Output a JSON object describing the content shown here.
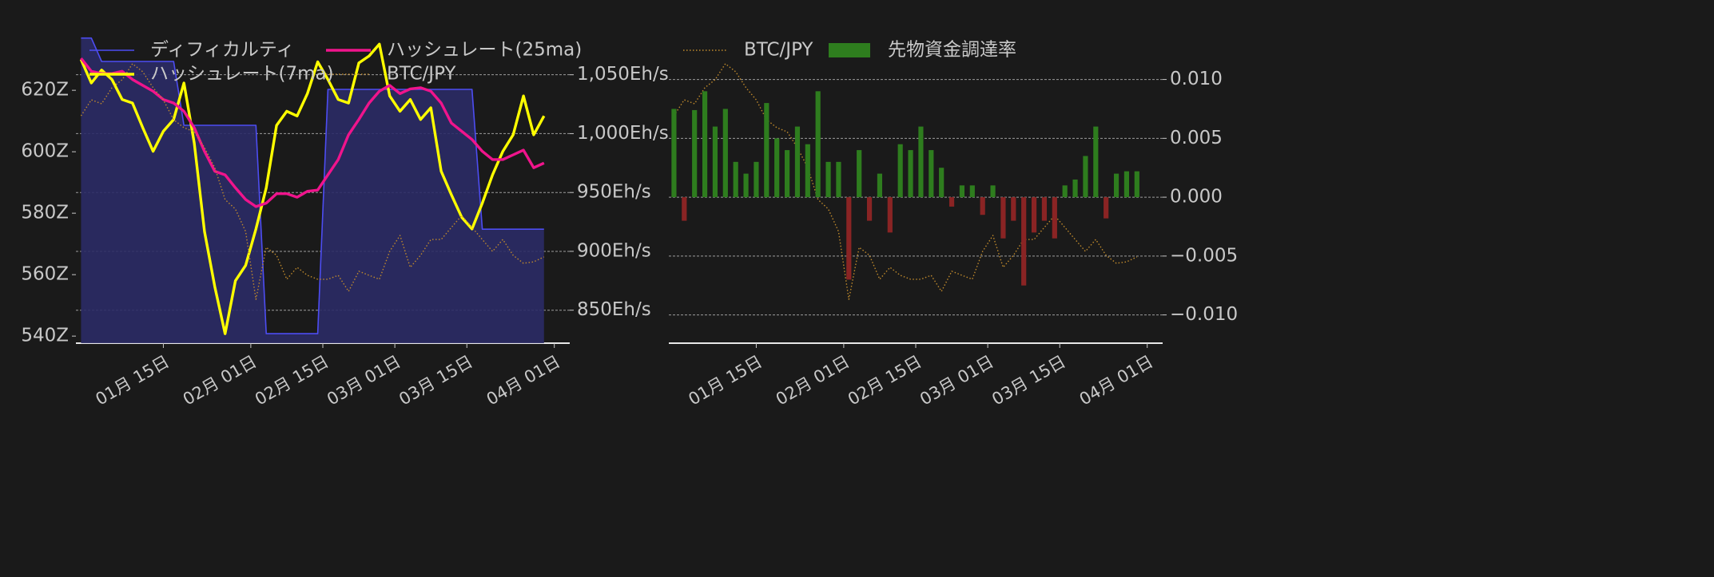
{
  "chart_data": [
    {
      "type": "line",
      "x": [
        -2,
        0,
        2,
        4,
        6,
        8,
        10,
        12,
        14,
        16,
        18,
        20,
        22,
        24,
        26,
        28,
        30,
        32,
        34,
        36,
        38,
        40,
        42,
        44,
        46,
        48,
        50,
        52,
        54,
        56,
        58,
        60,
        62,
        64,
        66,
        68,
        70,
        72,
        74,
        76,
        78,
        80,
        82,
        84,
        86,
        88
      ],
      "xlim": [
        -3,
        93
      ],
      "xticks": [
        {
          "value": 14,
          "label": "01月 15日"
        },
        {
          "value": 31,
          "label": "02月 01日"
        },
        {
          "value": 45,
          "label": "02月 15日"
        },
        {
          "value": 59,
          "label": "03月 01日"
        },
        {
          "value": 73,
          "label": "03月 15日"
        },
        {
          "value": 90,
          "label": "04月 01日"
        }
      ],
      "ylim": [
        537.7,
        637.7
      ],
      "yticks": [
        {
          "value": 540,
          "label": "540Z"
        },
        {
          "value": 560,
          "label": "560Z"
        },
        {
          "value": 580,
          "label": "580Z"
        },
        {
          "value": 600,
          "label": "600Z"
        },
        {
          "value": 620,
          "label": "620Z"
        }
      ],
      "y2lim": [
        822,
        1083
      ],
      "y2ticks": [
        {
          "value": 850,
          "label": "850Eh/s"
        },
        {
          "value": 900,
          "label": "900Eh/s"
        },
        {
          "value": 950,
          "label": "950Eh/s"
        },
        {
          "value": 1000,
          "label": "1,000Eh/s"
        },
        {
          "value": 1050,
          "label": "1,050Eh/s"
        }
      ],
      "y3lim": [
        3500000,
        5000000
      ],
      "grid": true,
      "legend": "upper left",
      "legend_ncol": 2,
      "series": [
        {
          "name": "ディフィカルティ",
          "type": "area",
          "color": "#4d4df2",
          "fill": "#2b2b66",
          "values": [
            637,
            637,
            629.4,
            629.4,
            629.4,
            629.4,
            629.4,
            629.4,
            629.4,
            629.4,
            608.6,
            608.6,
            608.6,
            608.6,
            608.6,
            608.6,
            608.6,
            608.6,
            540.8,
            540.8,
            540.8,
            540.8,
            540.8,
            540.8,
            620.3,
            620.3,
            620.3,
            620.3,
            620.3,
            620.3,
            620.3,
            620.3,
            620.3,
            620.3,
            620.3,
            620.3,
            620.3,
            620.3,
            620.3,
            574.8,
            574.8,
            574.8,
            574.8,
            574.8,
            574.8,
            574.8
          ]
        },
        {
          "name": "ハッシュレート(7ma)",
          "color": "#ffff00",
          "axis": "y2",
          "values": [
            1063,
            1043,
            1054,
            1046,
            1029,
            1026,
            1005,
            985,
            1002,
            1012,
            1043,
            992,
            917,
            870,
            830,
            875,
            888,
            919,
            954,
            1007,
            1019,
            1015,
            1034,
            1061,
            1046,
            1029,
            1026,
            1060,
            1066,
            1076,
            1032,
            1019,
            1029,
            1012,
            1022,
            968,
            948,
            929,
            919,
            941,
            965,
            985,
            999,
            1032,
            999,
            1015
          ]
        },
        {
          "name": "ハッシュレート(25ma)",
          "color": "#f0148c",
          "axis": "y2",
          "values": [
            1064,
            1053,
            1051,
            1051,
            1053,
            1046,
            1041,
            1036,
            1029,
            1026,
            1019,
            1005,
            985,
            968,
            965,
            954,
            944,
            938,
            941,
            949,
            949,
            946,
            951,
            952,
            965,
            978,
            999,
            1012,
            1026,
            1036,
            1041,
            1034,
            1038,
            1039,
            1036,
            1026,
            1009,
            1002,
            995,
            985,
            978,
            978,
            982,
            986,
            971,
            975
          ]
        },
        {
          "name": "BTC/JPY",
          "color": "#c08a2c",
          "axis": "y3",
          "dash": "dotted",
          "values": [
            4610000,
            4688000,
            4669000,
            4747000,
            4786000,
            4864000,
            4825000,
            4747000,
            4688000,
            4591000,
            4552000,
            4532000,
            4455000,
            4357000,
            4201000,
            4155000,
            4045000,
            3714000,
            3968000,
            3929000,
            3812000,
            3870000,
            3831000,
            3812000,
            3812000,
            3831000,
            3753000,
            3851000,
            3831000,
            3812000,
            3948000,
            4026000,
            3870000,
            3929000,
            4006000,
            4006000,
            4065000,
            4123000,
            4065000,
            4006000,
            3948000,
            4006000,
            3929000,
            3890000,
            3897000,
            3921000
          ]
        }
      ]
    },
    {
      "type": "bar",
      "x": [
        -2,
        0,
        2,
        4,
        6,
        8,
        10,
        12,
        14,
        16,
        18,
        20,
        22,
        24,
        26,
        28,
        30,
        32,
        34,
        36,
        38,
        40,
        42,
        44,
        46,
        48,
        50,
        52,
        54,
        56,
        58,
        60,
        62,
        64,
        66,
        68,
        70,
        72,
        74,
        76,
        78,
        80,
        82,
        84,
        86,
        88
      ],
      "xlim": [
        -3,
        93
      ],
      "xticks": [
        {
          "value": 14,
          "label": "01月 15日"
        },
        {
          "value": 31,
          "label": "02月 01日"
        },
        {
          "value": 45,
          "label": "02月 15日"
        },
        {
          "value": 59,
          "label": "03月 01日"
        },
        {
          "value": 73,
          "label": "03月 15日"
        },
        {
          "value": 90,
          "label": "04月 01日"
        }
      ],
      "y2lim": [
        -0.0124,
        0.0137
      ],
      "y2ticks": [
        {
          "value": -0.01,
          "label": "−0.010"
        },
        {
          "value": -0.005,
          "label": "−0.005"
        },
        {
          "value": 0,
          "label": "0.000"
        },
        {
          "value": 0.005,
          "label": "0.005"
        },
        {
          "value": 0.01,
          "label": "0.010"
        }
      ],
      "y3lim": [
        3500000,
        5000000
      ],
      "grid": true,
      "legend": "upper left",
      "legend_ncol": 2,
      "series": [
        {
          "name": "BTC/JPY",
          "type": "line",
          "color": "#c08a2c",
          "axis": "y3",
          "dash": "dotted",
          "values": [
            4610000,
            4688000,
            4669000,
            4747000,
            4786000,
            4864000,
            4825000,
            4747000,
            4688000,
            4591000,
            4552000,
            4532000,
            4455000,
            4357000,
            4201000,
            4155000,
            4045000,
            3714000,
            3968000,
            3929000,
            3812000,
            3870000,
            3831000,
            3812000,
            3812000,
            3831000,
            3753000,
            3851000,
            3831000,
            3812000,
            3948000,
            4026000,
            3870000,
            3929000,
            4006000,
            4006000,
            4065000,
            4123000,
            4065000,
            4006000,
            3948000,
            4006000,
            3929000,
            3890000,
            3897000,
            3921000
          ]
        },
        {
          "name": "先物資金調達率",
          "type": "bar",
          "color": "#2e7d1e",
          "negative_color": "#8a2424",
          "axis": "y2",
          "values": [
            0.0075,
            -0.002,
            0.0074,
            0.009,
            0.006,
            0.0075,
            0.003,
            0.002,
            0.003,
            0.008,
            0.005,
            0.004,
            0.006,
            0.0045,
            0.009,
            0.003,
            0.003,
            -0.007,
            0.004,
            -0.002,
            0.002,
            -0.003,
            0.0045,
            0.004,
            0.006,
            0.004,
            0.0025,
            -0.0008,
            0.001,
            0.001,
            -0.0015,
            0.001,
            -0.0035,
            -0.002,
            -0.0075,
            -0.003,
            -0.002,
            -0.0035,
            0.001,
            0.0015,
            0.0035,
            0.006,
            -0.0018,
            0.002,
            0.0022,
            0.0022
          ]
        }
      ]
    }
  ]
}
